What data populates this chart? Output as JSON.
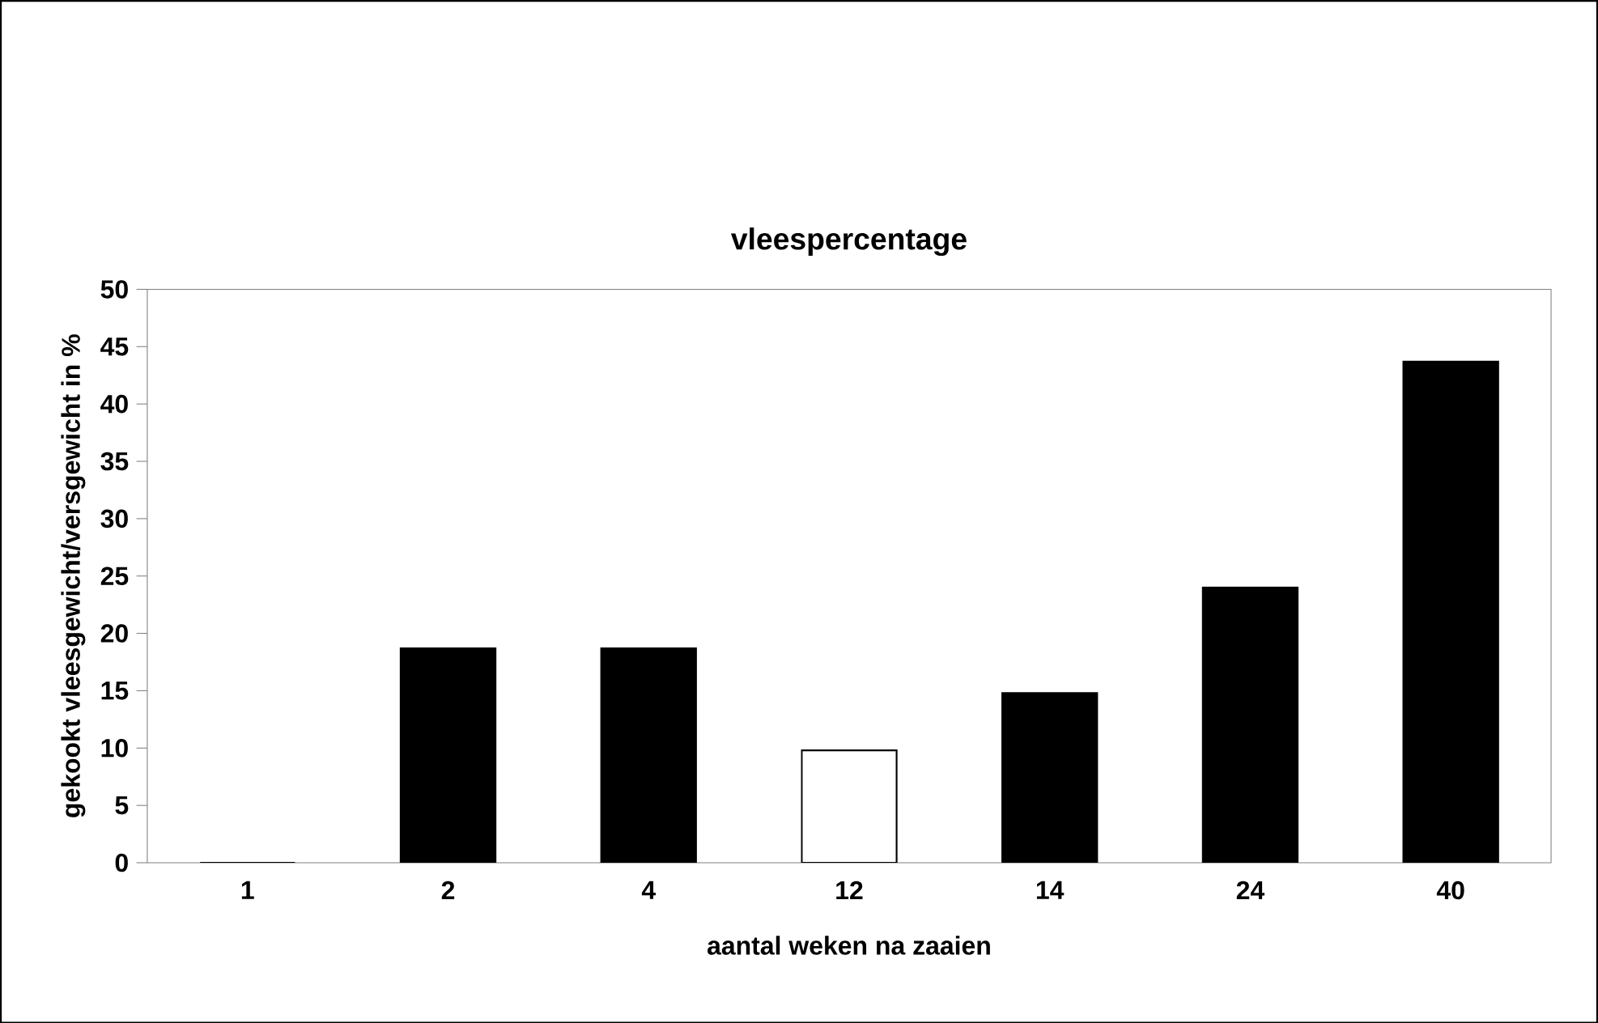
{
  "chart_data": {
    "type": "bar",
    "title": "vleespercentage",
    "xlabel": "aantal weken na zaaien",
    "ylabel": "gekookt vleesgewicht/versgewicht in %",
    "categories": [
      "1",
      "2",
      "4",
      "12",
      "14",
      "24",
      "40"
    ],
    "values": [
      0,
      18.7,
      18.7,
      9.8,
      14.8,
      24.0,
      43.7
    ],
    "colors": [
      "#000000",
      "#000000",
      "#000000",
      "#ffffff",
      "#000000",
      "#000000",
      "#000000"
    ],
    "ylim": [
      0,
      50
    ],
    "yticks": [
      0,
      5,
      10,
      15,
      20,
      25,
      30,
      35,
      40,
      45,
      50
    ],
    "grid": false
  }
}
